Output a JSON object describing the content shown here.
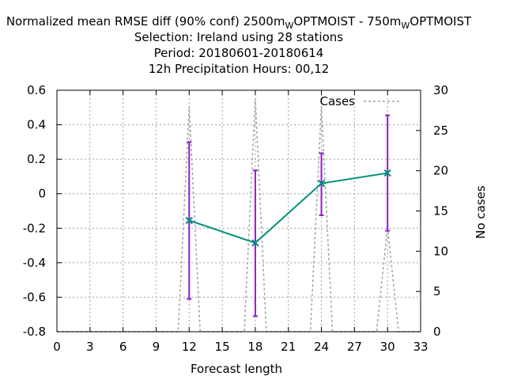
{
  "chart_data": {
    "type": "line",
    "title": {
      "lines": [
        {
          "parts": [
            {
              "text": "Normalized mean RMSE diff (90% conf) 2500m",
              "sub": false
            },
            {
              "text": "W",
              "sub": true
            },
            {
              "text": "OPTMOIST - 750m",
              "sub": false
            },
            {
              "text": "W",
              "sub": true
            },
            {
              "text": "OPTMOIST",
              "sub": false
            }
          ]
        },
        {
          "parts": [
            {
              "text": "Selection: Ireland using     28 stations",
              "sub": false
            }
          ]
        },
        {
          "parts": [
            {
              "text": "Period: 20180601-20180614",
              "sub": false
            }
          ]
        },
        {
          "parts": [
            {
              "text": "12h Precipitation    Hours:  00,12",
              "sub": false
            }
          ]
        }
      ]
    },
    "xlabel": "Forecast length",
    "ylabel": "",
    "y2label": "No cases",
    "xlim": [
      0,
      33
    ],
    "ylim": [
      -0.8,
      0.6
    ],
    "y2lim": [
      0,
      30
    ],
    "xticks": [
      0,
      3,
      6,
      9,
      12,
      15,
      18,
      21,
      24,
      27,
      30,
      33
    ],
    "yticks": [
      -0.8,
      -0.6,
      -0.4,
      -0.2,
      0,
      0.2,
      0.4,
      0.6
    ],
    "ytick_labels": [
      "-0.8",
      "-0.6",
      "-0.4",
      "-0.2",
      "0",
      "0.2",
      "0.4",
      "0.6"
    ],
    "y2ticks": [
      0,
      5,
      10,
      15,
      20,
      25,
      30
    ],
    "grid": true,
    "legend_position": "top-right",
    "series": [
      {
        "name": "",
        "type": "line-errorbar",
        "color": "#00907a",
        "errorbar_color": "#8c1fc0",
        "x": [
          12,
          18,
          24,
          30
        ],
        "y": [
          -0.155,
          -0.285,
          0.06,
          0.12
        ],
        "err_low": [
          -0.61,
          -0.71,
          -0.125,
          -0.215
        ],
        "err_high": [
          0.3,
          0.135,
          0.235,
          0.455
        ]
      },
      {
        "name": "Cases",
        "type": "line",
        "axis": "y2",
        "dashed": true,
        "color": "#a0a0a0",
        "x": [
          0,
          11,
          12,
          13,
          17,
          18,
          19,
          23,
          24,
          25,
          29,
          30,
          31,
          33
        ],
        "y": [
          0,
          0,
          28,
          0,
          0,
          29,
          0,
          0,
          28,
          0,
          0,
          13,
          0,
          0
        ]
      }
    ]
  }
}
